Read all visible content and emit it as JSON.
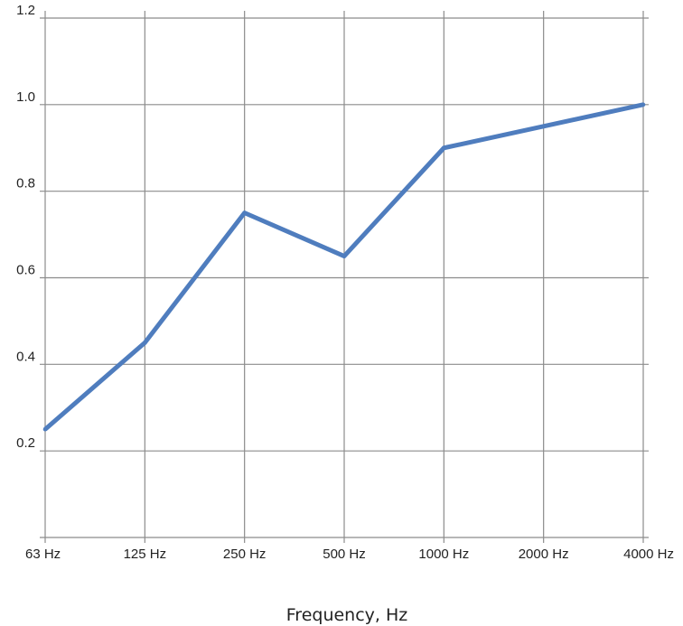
{
  "chart_data": {
    "type": "line",
    "categories": [
      "63 Hz",
      "125 Hz",
      "250 Hz",
      "500 Hz",
      "1000 Hz",
      "2000 Hz",
      "4000 Hz"
    ],
    "series": [
      {
        "values": [
          0.25,
          0.45,
          0.75,
          0.65,
          0.9,
          0.95,
          1.0
        ]
      }
    ],
    "xlabel": "Frequency, Hz",
    "ylabel": "",
    "ylim": [
      0.0,
      1.2
    ],
    "yticks": [
      "0.2",
      "0.4",
      "0.6",
      "0.8",
      "1.0",
      "1.2"
    ],
    "grid": true,
    "colors": {
      "series": "#4f7dbe",
      "grid": "#8c8c8c"
    }
  }
}
